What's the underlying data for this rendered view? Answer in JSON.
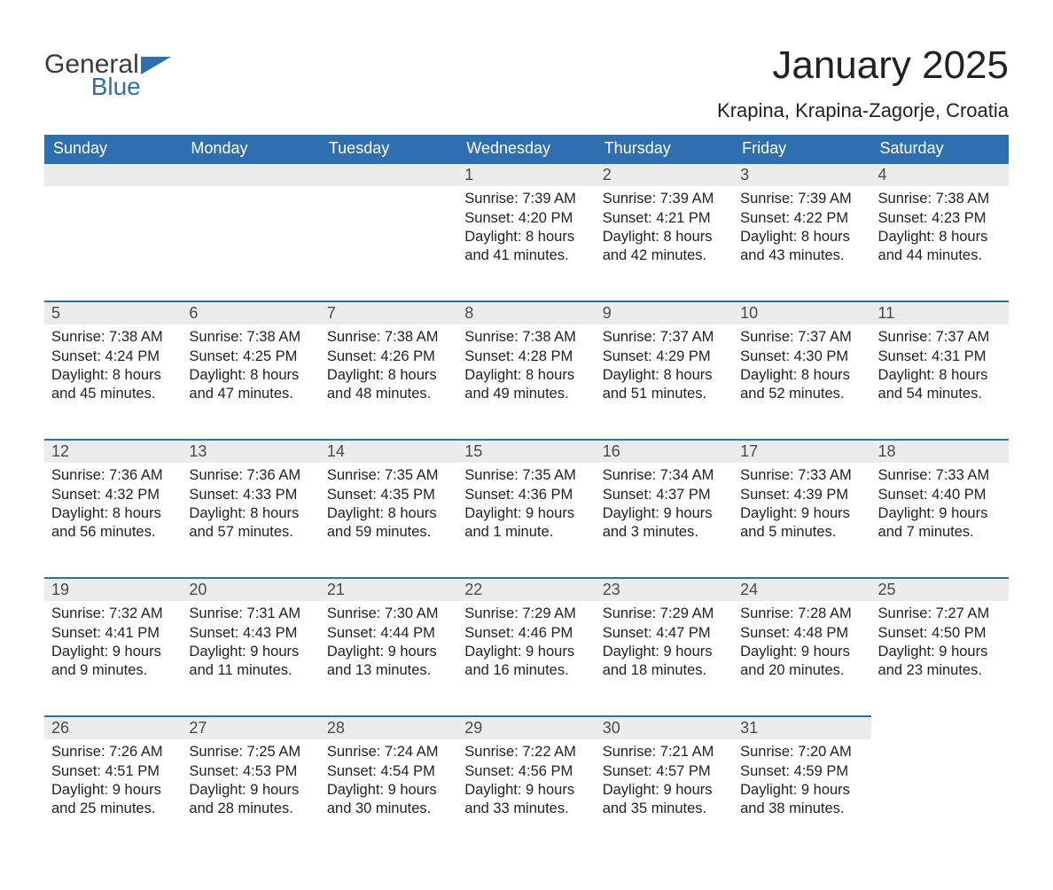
{
  "logo": {
    "word1": "General",
    "word2": "Blue"
  },
  "title": "January 2025",
  "location": "Krapina, Krapina-Zagorje, Croatia",
  "colors": {
    "header_bg": "#2f6fb0",
    "header_text": "#ffffff",
    "daynum_bg": "#ececec",
    "daynum_border": "#2f6fb0",
    "body_text": "#222222",
    "logo_gray": "#3b3b3b",
    "logo_blue": "#2f6fb0",
    "page_bg": "#ffffff"
  },
  "weekdays": [
    "Sunday",
    "Monday",
    "Tuesday",
    "Wednesday",
    "Thursday",
    "Friday",
    "Saturday"
  ],
  "weeks": [
    [
      null,
      null,
      null,
      {
        "n": "1",
        "sunrise": "7:39 AM",
        "sunset": "4:20 PM",
        "dl1": "8 hours",
        "dl2": "41 minutes."
      },
      {
        "n": "2",
        "sunrise": "7:39 AM",
        "sunset": "4:21 PM",
        "dl1": "8 hours",
        "dl2": "42 minutes."
      },
      {
        "n": "3",
        "sunrise": "7:39 AM",
        "sunset": "4:22 PM",
        "dl1": "8 hours",
        "dl2": "43 minutes."
      },
      {
        "n": "4",
        "sunrise": "7:38 AM",
        "sunset": "4:23 PM",
        "dl1": "8 hours",
        "dl2": "44 minutes."
      }
    ],
    [
      {
        "n": "5",
        "sunrise": "7:38 AM",
        "sunset": "4:24 PM",
        "dl1": "8 hours",
        "dl2": "45 minutes."
      },
      {
        "n": "6",
        "sunrise": "7:38 AM",
        "sunset": "4:25 PM",
        "dl1": "8 hours",
        "dl2": "47 minutes."
      },
      {
        "n": "7",
        "sunrise": "7:38 AM",
        "sunset": "4:26 PM",
        "dl1": "8 hours",
        "dl2": "48 minutes."
      },
      {
        "n": "8",
        "sunrise": "7:38 AM",
        "sunset": "4:28 PM",
        "dl1": "8 hours",
        "dl2": "49 minutes."
      },
      {
        "n": "9",
        "sunrise": "7:37 AM",
        "sunset": "4:29 PM",
        "dl1": "8 hours",
        "dl2": "51 minutes."
      },
      {
        "n": "10",
        "sunrise": "7:37 AM",
        "sunset": "4:30 PM",
        "dl1": "8 hours",
        "dl2": "52 minutes."
      },
      {
        "n": "11",
        "sunrise": "7:37 AM",
        "sunset": "4:31 PM",
        "dl1": "8 hours",
        "dl2": "54 minutes."
      }
    ],
    [
      {
        "n": "12",
        "sunrise": "7:36 AM",
        "sunset": "4:32 PM",
        "dl1": "8 hours",
        "dl2": "56 minutes."
      },
      {
        "n": "13",
        "sunrise": "7:36 AM",
        "sunset": "4:33 PM",
        "dl1": "8 hours",
        "dl2": "57 minutes."
      },
      {
        "n": "14",
        "sunrise": "7:35 AM",
        "sunset": "4:35 PM",
        "dl1": "8 hours",
        "dl2": "59 minutes."
      },
      {
        "n": "15",
        "sunrise": "7:35 AM",
        "sunset": "4:36 PM",
        "dl1": "9 hours",
        "dl2": "1 minute."
      },
      {
        "n": "16",
        "sunrise": "7:34 AM",
        "sunset": "4:37 PM",
        "dl1": "9 hours",
        "dl2": "3 minutes."
      },
      {
        "n": "17",
        "sunrise": "7:33 AM",
        "sunset": "4:39 PM",
        "dl1": "9 hours",
        "dl2": "5 minutes."
      },
      {
        "n": "18",
        "sunrise": "7:33 AM",
        "sunset": "4:40 PM",
        "dl1": "9 hours",
        "dl2": "7 minutes."
      }
    ],
    [
      {
        "n": "19",
        "sunrise": "7:32 AM",
        "sunset": "4:41 PM",
        "dl1": "9 hours",
        "dl2": "9 minutes."
      },
      {
        "n": "20",
        "sunrise": "7:31 AM",
        "sunset": "4:43 PM",
        "dl1": "9 hours",
        "dl2": "11 minutes."
      },
      {
        "n": "21",
        "sunrise": "7:30 AM",
        "sunset": "4:44 PM",
        "dl1": "9 hours",
        "dl2": "13 minutes."
      },
      {
        "n": "22",
        "sunrise": "7:29 AM",
        "sunset": "4:46 PM",
        "dl1": "9 hours",
        "dl2": "16 minutes."
      },
      {
        "n": "23",
        "sunrise": "7:29 AM",
        "sunset": "4:47 PM",
        "dl1": "9 hours",
        "dl2": "18 minutes."
      },
      {
        "n": "24",
        "sunrise": "7:28 AM",
        "sunset": "4:48 PM",
        "dl1": "9 hours",
        "dl2": "20 minutes."
      },
      {
        "n": "25",
        "sunrise": "7:27 AM",
        "sunset": "4:50 PM",
        "dl1": "9 hours",
        "dl2": "23 minutes."
      }
    ],
    [
      {
        "n": "26",
        "sunrise": "7:26 AM",
        "sunset": "4:51 PM",
        "dl1": "9 hours",
        "dl2": "25 minutes."
      },
      {
        "n": "27",
        "sunrise": "7:25 AM",
        "sunset": "4:53 PM",
        "dl1": "9 hours",
        "dl2": "28 minutes."
      },
      {
        "n": "28",
        "sunrise": "7:24 AM",
        "sunset": "4:54 PM",
        "dl1": "9 hours",
        "dl2": "30 minutes."
      },
      {
        "n": "29",
        "sunrise": "7:22 AM",
        "sunset": "4:56 PM",
        "dl1": "9 hours",
        "dl2": "33 minutes."
      },
      {
        "n": "30",
        "sunrise": "7:21 AM",
        "sunset": "4:57 PM",
        "dl1": "9 hours",
        "dl2": "35 minutes."
      },
      {
        "n": "31",
        "sunrise": "7:20 AM",
        "sunset": "4:59 PM",
        "dl1": "9 hours",
        "dl2": "38 minutes."
      },
      null
    ]
  ],
  "labels": {
    "sunrise": "Sunrise: ",
    "sunset": "Sunset: ",
    "daylight": "Daylight: ",
    "and": "and "
  }
}
